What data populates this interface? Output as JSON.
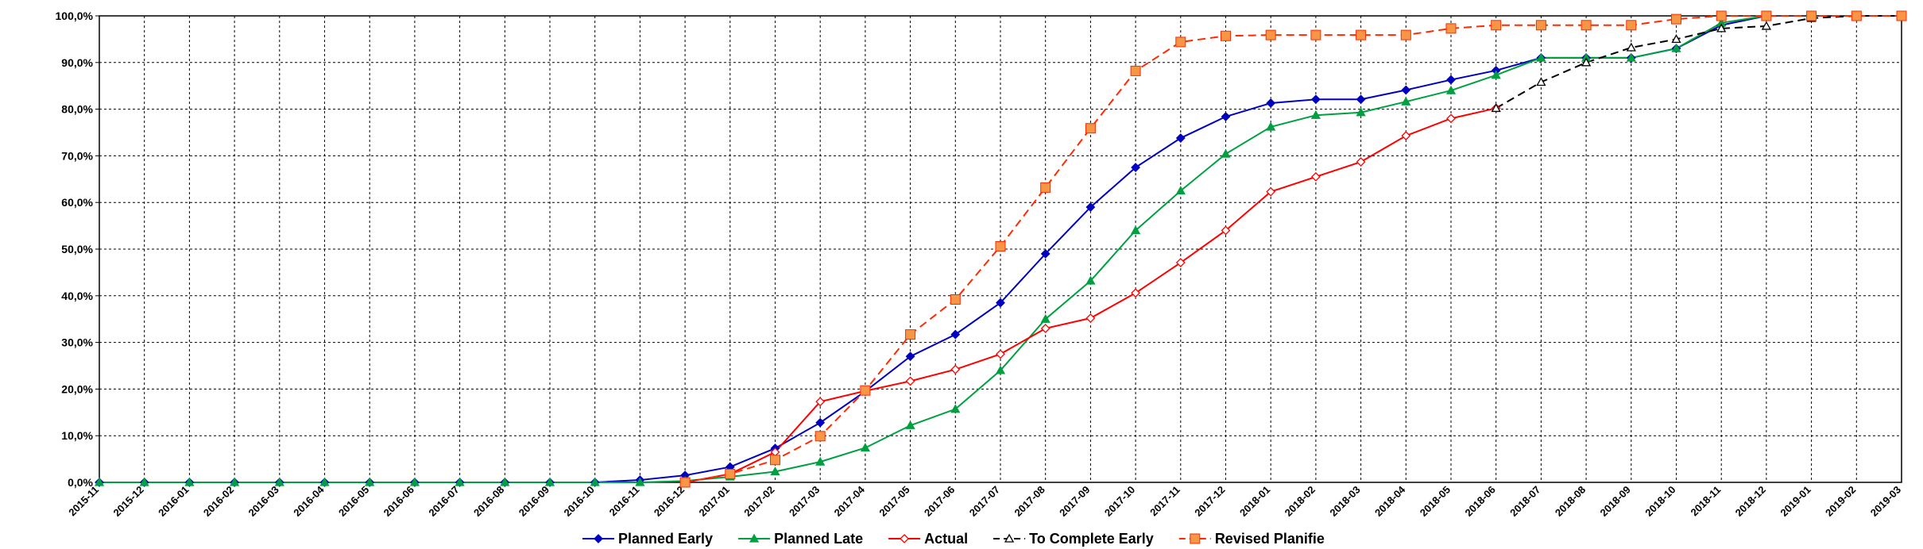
{
  "chart_data": {
    "type": "line",
    "categories": [
      "2015-11",
      "2015-12",
      "2016-01",
      "2016-02",
      "2016-03",
      "2016-04",
      "2016-05",
      "2016-06",
      "2016-07",
      "2016-08",
      "2016-09",
      "2016-10",
      "2016-11",
      "2016-12",
      "2017-01",
      "2017-02",
      "2017-03",
      "2017-04",
      "2017-05",
      "2017-06",
      "2017-07",
      "2017-08",
      "2017-09",
      "2017-10",
      "2017-11",
      "2017-12",
      "2018-01",
      "2018-02",
      "2018-03",
      "2018-04",
      "2018-05",
      "2018-06",
      "2018-07",
      "2018-08",
      "2018-09",
      "2018-10",
      "2018-11",
      "2018-12",
      "2019-01",
      "2019-02",
      "2019-03"
    ],
    "series": [
      {
        "name": "Planned Early",
        "color": "#0000c0",
        "marker": "diamond",
        "dashed": false,
        "values": [
          0,
          0,
          0,
          0,
          0,
          0,
          0,
          0,
          0,
          0,
          0,
          0,
          0.5,
          1.5,
          3.3,
          7.3,
          12.8,
          19.5,
          27,
          31.7,
          38.5,
          49,
          59,
          67.5,
          73.8,
          78.4,
          81.3,
          82.1,
          82.1,
          84.1,
          86.3,
          88.3,
          91,
          91,
          91,
          93,
          98,
          100,
          null,
          null,
          null
        ]
      },
      {
        "name": "Planned Late",
        "color": "#00a040",
        "marker": "triangle",
        "dashed": false,
        "values": [
          0,
          0,
          0,
          0,
          0,
          0,
          0,
          0,
          0,
          0,
          0,
          0,
          0,
          0.3,
          1.2,
          2.3,
          4.4,
          7.4,
          12.2,
          15.7,
          24,
          35,
          43.2,
          54,
          62.5,
          70.4,
          76.2,
          78.7,
          79.3,
          81.6,
          84,
          87.3,
          91,
          91,
          91,
          93,
          98.5,
          100,
          null,
          null,
          null
        ]
      },
      {
        "name": "Actual",
        "color": "#ff0000",
        "marker": "hollow-diamond",
        "dashed": false,
        "values": [
          null,
          null,
          null,
          null,
          null,
          null,
          null,
          null,
          null,
          null,
          null,
          null,
          null,
          0,
          1.8,
          6.5,
          17.3,
          19.6,
          21.7,
          24.2,
          27.5,
          33,
          35.2,
          40.6,
          47.1,
          54,
          62.3,
          65.5,
          68.7,
          74.3,
          78,
          80.2,
          null,
          null,
          null,
          null,
          null,
          null,
          null,
          null,
          null
        ]
      },
      {
        "name": "To Complete Early",
        "color": "#000000",
        "marker": "hollow-triangle",
        "dashed": true,
        "values": [
          null,
          null,
          null,
          null,
          null,
          null,
          null,
          null,
          null,
          null,
          null,
          null,
          null,
          null,
          null,
          null,
          null,
          null,
          null,
          null,
          null,
          null,
          null,
          null,
          null,
          null,
          null,
          null,
          null,
          null,
          null,
          80.2,
          85.8,
          90,
          93.2,
          95,
          97.3,
          97.8,
          99.5,
          100,
          100
        ]
      },
      {
        "name": "Revised Planifie",
        "color": "#ff2a00",
        "marker": "square",
        "marker_color": "#f79646",
        "dashed": true,
        "values": [
          null,
          null,
          null,
          null,
          null,
          null,
          null,
          null,
          null,
          null,
          null,
          null,
          null,
          0,
          1.8,
          4.8,
          9.9,
          19.7,
          31.7,
          39.2,
          50.6,
          63.2,
          75.9,
          88.2,
          94.4,
          95.7,
          95.9,
          95.9,
          95.9,
          95.9,
          97.3,
          98,
          98,
          98,
          98,
          99.3,
          100,
          100,
          100,
          100,
          100
        ]
      }
    ],
    "ylim": [
      0,
      100
    ],
    "yticks": [
      {
        "value": 0,
        "label": "0,0%"
      },
      {
        "value": 10,
        "label": "10,0%"
      },
      {
        "value": 20,
        "label": "20,0%"
      },
      {
        "value": 30,
        "label": "30,0%"
      },
      {
        "value": 40,
        "label": "40,0%"
      },
      {
        "value": 50,
        "label": "50,0%"
      },
      {
        "value": 60,
        "label": "60,0%"
      },
      {
        "value": 70,
        "label": "70,0%"
      },
      {
        "value": 80,
        "label": "80,0%"
      },
      {
        "value": 90,
        "label": "90,0%"
      },
      {
        "value": 100,
        "label": "100,0%"
      }
    ],
    "grid": true,
    "legend": "bottom"
  }
}
